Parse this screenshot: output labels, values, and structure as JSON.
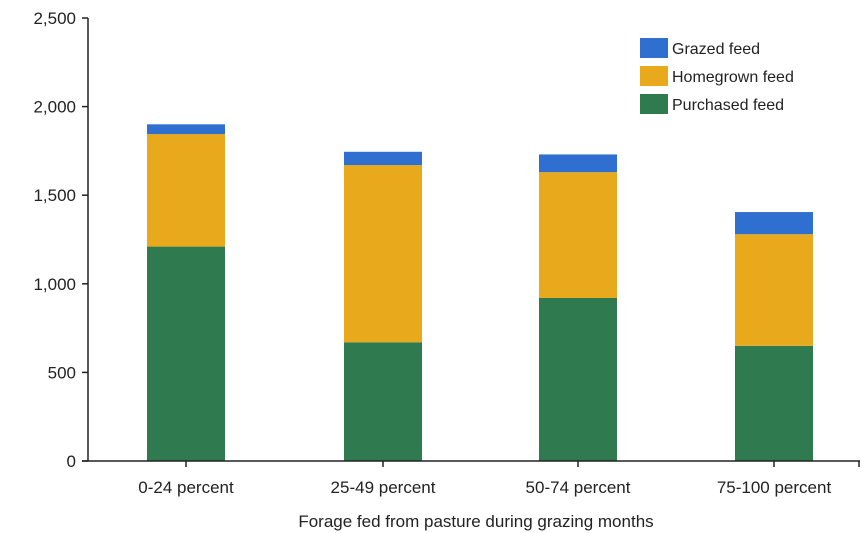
{
  "chart_data": {
    "type": "bar",
    "stacked": true,
    "title": "",
    "xlabel": "Forage fed from pasture during grazing months",
    "ylabel": "",
    "ylim": [
      0,
      2500
    ],
    "yticks": [
      0,
      500,
      1000,
      1500,
      2000,
      2500
    ],
    "ytick_labels": [
      "0",
      "500",
      "1,000",
      "1,500",
      "2,000",
      "2,500"
    ],
    "categories": [
      "0-24 percent",
      "25-49 percent",
      "50-74 percent",
      "75-100 percent"
    ],
    "series": [
      {
        "name": "Purchased feed",
        "color": "#2f7a4e",
        "values": [
          1210,
          670,
          920,
          650
        ]
      },
      {
        "name": "Homegrown feed",
        "color": "#e8a91c",
        "values": [
          635,
          1000,
          710,
          630
        ]
      },
      {
        "name": "Grazed feed",
        "color": "#2f6fd0",
        "values": [
          55,
          75,
          100,
          125
        ]
      }
    ],
    "legend": {
      "position": "top-right",
      "order": [
        "Grazed feed",
        "Homegrown feed",
        "Purchased feed"
      ]
    },
    "grid": false
  }
}
